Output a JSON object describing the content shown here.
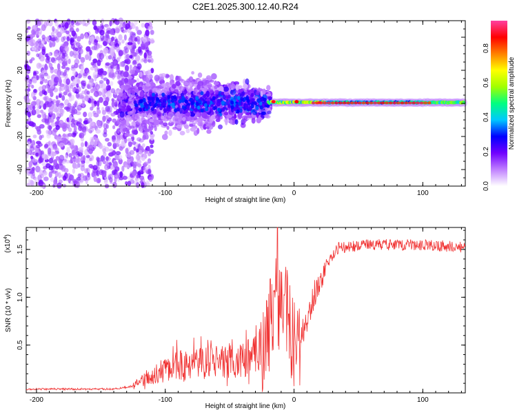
{
  "title": "C2E1.2025.300.12.40.R24",
  "colorbar": {
    "label": "Normalized spectral amplitude",
    "ticks": [
      "0.0",
      "0.2",
      "0.4",
      "0.6",
      "0.8"
    ],
    "tick_values": [
      0.0,
      0.2,
      0.4,
      0.6,
      0.8
    ],
    "range": [
      0,
      0.96
    ],
    "colors": [
      "#ffffff",
      "#c080ff",
      "#7000ff",
      "#0000ff",
      "#00c8ff",
      "#00ff80",
      "#a0ff00",
      "#ffff00",
      "#ff8000",
      "#ff0000",
      "#ff40a0"
    ]
  },
  "chart_data": [
    {
      "type": "heatmap",
      "title": "C2E1.2025.300.12.40.R24",
      "xlabel": "Height of straight line (km)",
      "ylabel": "Frequency (Hz)",
      "xlim": [
        -208,
        133
      ],
      "ylim": [
        -50,
        50
      ],
      "xticks": [
        -200,
        -100,
        0,
        100
      ],
      "xtick_labels": [
        "-200",
        "-100",
        "0",
        "100"
      ],
      "yticks": [
        -40,
        -20,
        0,
        20,
        40
      ],
      "ytick_labels": [
        "-40",
        "-20",
        "0",
        "20",
        "40"
      ],
      "regions": [
        {
          "name": "scattered-noise",
          "x": [
            -208,
            -125
          ],
          "freq_spread_hz": 50,
          "amplitude": [
            0.0,
            0.2
          ]
        },
        {
          "name": "broad-band",
          "x": [
            -125,
            -20
          ],
          "freq_spread_hz": 15,
          "amplitude": [
            0.05,
            0.35
          ]
        },
        {
          "name": "narrow-line",
          "x": [
            -20,
            133
          ],
          "freq_spread_hz": 3,
          "amplitude": [
            0.3,
            0.95
          ]
        }
      ]
    },
    {
      "type": "line",
      "xlabel": "Height of straight line (km)",
      "ylabel": "SNR (10 * v/v)",
      "y_multiplier_label": "(x10",
      "y_multiplier_exp": "4",
      "xlim": [
        -208,
        133
      ],
      "ylim": [
        0,
        1.73
      ],
      "xticks": [
        -200,
        -100,
        0,
        100
      ],
      "xtick_labels": [
        "-200",
        "-100",
        "0",
        "100"
      ],
      "yticks": [
        0.5,
        1.0,
        1.5
      ],
      "ytick_labels": [
        "0.5",
        "1.0",
        "1.5"
      ],
      "color": "#f03030",
      "series_envelope": [
        {
          "x": -208,
          "y": 0.03
        },
        {
          "x": -140,
          "y": 0.03
        },
        {
          "x": -125,
          "y": 0.06
        },
        {
          "x": -110,
          "y": 0.15
        },
        {
          "x": -90,
          "y": 0.22
        },
        {
          "x": -60,
          "y": 0.25
        },
        {
          "x": -40,
          "y": 0.28
        },
        {
          "x": -25,
          "y": 0.35
        },
        {
          "x": -20,
          "y": 0.6
        },
        {
          "x": -15,
          "y": 1.0
        },
        {
          "x": -10,
          "y": 0.9
        },
        {
          "x": -5,
          "y": 0.8
        },
        {
          "x": 0,
          "y": 0.45
        },
        {
          "x": 5,
          "y": 0.55
        },
        {
          "x": 15,
          "y": 1.0
        },
        {
          "x": 25,
          "y": 1.35
        },
        {
          "x": 35,
          "y": 1.52
        },
        {
          "x": 60,
          "y": 1.55
        },
        {
          "x": 100,
          "y": 1.55
        },
        {
          "x": 133,
          "y": 1.52
        }
      ],
      "peak": {
        "x": -13,
        "y": 1.73
      }
    }
  ]
}
